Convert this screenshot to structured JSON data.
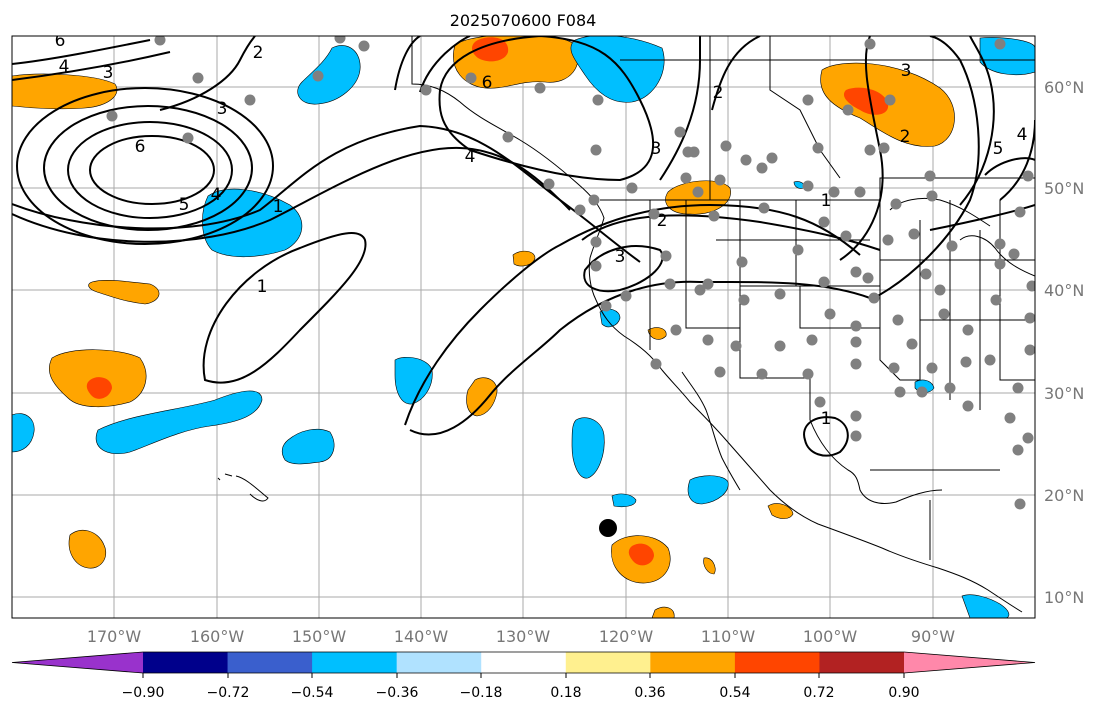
{
  "title": "2025070600 F084",
  "map": {
    "lat_labels": [
      "60°N",
      "50°N",
      "40°N",
      "30°N",
      "20°N",
      "10°N"
    ],
    "lon_labels": [
      "170°W",
      "160°W",
      "150°W",
      "140°W",
      "130°W",
      "120°W",
      "110°W",
      "100°W",
      "90°W"
    ],
    "contour_labels": [
      "6",
      "2",
      "4",
      "3",
      "3",
      "6",
      "5",
      "4",
      "1",
      "1",
      "6",
      "4",
      "2",
      "3",
      "2",
      "3",
      "1",
      "2",
      "5",
      "4",
      "3",
      "1"
    ],
    "colors": {
      "land_outline": "#000000",
      "grid": "#aaaaaa",
      "contour": "#000000",
      "station_dot": "#808080",
      "marker": "#000000"
    }
  },
  "colorbar": {
    "tick_labels": [
      "−0.90",
      "−0.72",
      "−0.54",
      "−0.36",
      "−0.18",
      "0.18",
      "0.36",
      "0.54",
      "0.72",
      "0.90"
    ],
    "colors": [
      "#9932cc",
      "#00008b",
      "#3a5fcd",
      "#00bfff",
      "#b0e2ff",
      "#ffffff",
      "#fff08f",
      "#ffa500",
      "#ff4500",
      "#b22222",
      "#ff88aa"
    ]
  }
}
